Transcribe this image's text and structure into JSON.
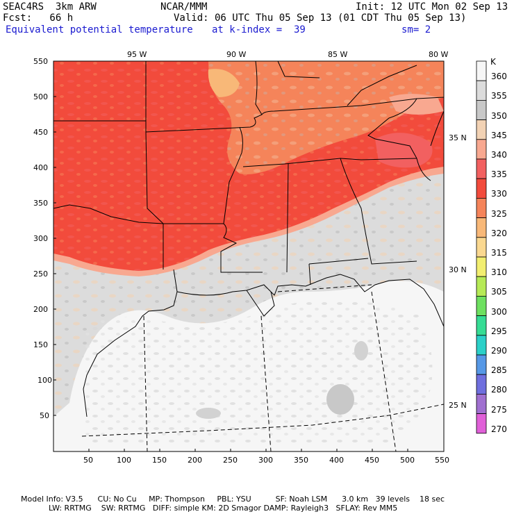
{
  "header": {
    "model": "SEAC4RS  3km ARW",
    "org": "NCAR/MMM",
    "init": "Init: 12 UTC Mon 02 Sep 13",
    "fcst": "Fcst:   66 h",
    "valid": "Valid: 06 UTC Thu 05 Sep 13 (01 CDT Thu 05 Sep 13)",
    "field": "Equivalent potential temperature",
    "level": "at k-index =  39",
    "smooth": "sm= 2"
  },
  "map": {
    "lon_labels": [
      "95 W",
      "90 W",
      "85 W",
      "80 W"
    ],
    "lat_labels": [
      "35 N",
      "30 N",
      "25 N"
    ],
    "x_ticks": [
      "50",
      "100",
      "150",
      "200",
      "250",
      "300",
      "350",
      "400",
      "450",
      "500",
      "550"
    ],
    "y_ticks": [
      "550",
      "500",
      "450",
      "400",
      "350",
      "300",
      "250",
      "200",
      "150",
      "100",
      "50"
    ]
  },
  "colorbar": {
    "unit": "K",
    "levels": [
      "360",
      "355",
      "350",
      "345",
      "340",
      "335",
      "330",
      "325",
      "320",
      "315",
      "310",
      "305",
      "300",
      "295",
      "290",
      "285",
      "280",
      "275",
      "270"
    ],
    "colors": [
      "#f6f6f6",
      "#dcdcdc",
      "#c8c8c8",
      "#f2d2b4",
      "#f8a890",
      "#f26060",
      "#f24b3c",
      "#f5845a",
      "#f8b878",
      "#fad890",
      "#f2ee70",
      "#b6ea56",
      "#6ee060",
      "#36dc94",
      "#2cd0c8",
      "#5698e6",
      "#6f6fde",
      "#a070d0",
      "#e060d8"
    ]
  },
  "footer": {
    "line1": "Model Info: V3.5      CU: No Cu     MP: Thompson     PBL: YSU          SF: Noah LSM      3.0 km   39 levels    18 sec",
    "line2": "LW: RRTMG    SW: RRTMG   DIFF: simple KM: 2D Smagor DAMP: Rayleigh3   SFLAY: Rev MM5"
  }
}
